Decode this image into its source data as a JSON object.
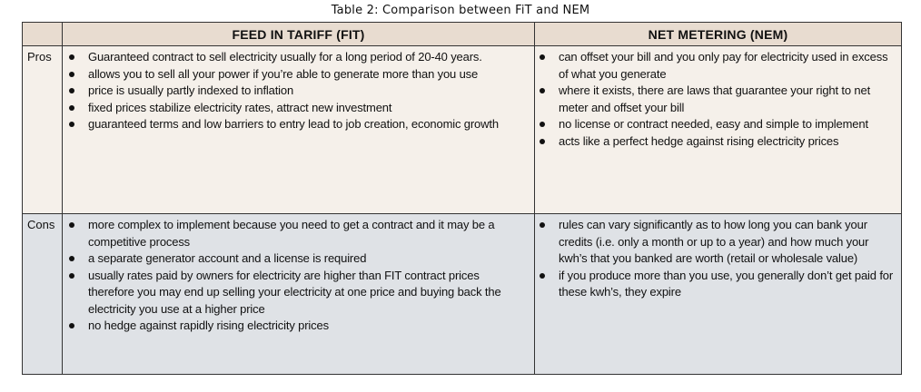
{
  "caption": "Table 2: Comparison between FiT and NEM",
  "headers": {
    "corner": "",
    "fit": "FEED IN TARIFF (FIT)",
    "nem": "NET METERING (NEM)"
  },
  "rows": {
    "pros": {
      "label": "Pros",
      "fit": [
        "Guaranteed contract to sell electricity usually for a long period of 20-40 years.",
        "allows you to sell all your power if you’re able to generate more than you use",
        "price is usually partly indexed to inflation",
        "fixed prices stabilize electricity rates, attract new investment",
        "guaranteed terms and low barriers to entry lead to job creation, economic growth"
      ],
      "nem": [
        "can offset your bill and you only pay for electricity used in excess of what you generate",
        "where it exists, there are laws that guarantee your right to net meter and offset your bill",
        "no license or contract needed, easy and simple to implement",
        "acts like a perfect hedge against rising electricity prices"
      ]
    },
    "cons": {
      "label": "Cons",
      "fit": [
        "more complex to implement because you need to get a contract and it may be a competitive process",
        "a separate generator account and a license is required",
        "usually rates paid by owners for electricity are higher than FIT contract prices therefore you may end up selling your electricity at one price and buying back the electricity you use at a higher price",
        "no hedge against rapidly rising electricity prices"
      ],
      "nem": [
        "rules can vary significantly as to how long you can bank your credits (i.e. only a month or up to a year) and how much your kwh’s that you banked are worth (retail or wholesale value)",
        "if you produce more than you use, you generally don’t get paid for these kwh’s, they expire"
      ]
    }
  }
}
